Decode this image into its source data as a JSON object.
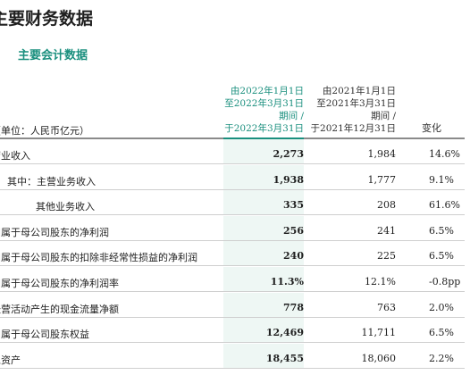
{
  "title": "主要财务数据",
  "subtitle": "主要会计数据",
  "header": {
    "current": [
      "由2022年1月1日",
      "至2022年3月31日",
      "期间 /",
      "于2022年3月31日"
    ],
    "previous": [
      "由2021年1月1日",
      "至2021年3月31日",
      "期间 /",
      "于2021年12月31日"
    ],
    "change": "变化",
    "unit": "（单位：人民币亿元）"
  },
  "accent_color": "#1a8f7e",
  "rows": [
    {
      "label": "营业收入",
      "current": "2,273",
      "previous": "1,984",
      "change": "14.6%"
    },
    {
      "label": "其中：主营业务收入",
      "current": "1,938",
      "previous": "1,777",
      "change": "9.1%"
    },
    {
      "label": "其他业务收入",
      "current": "335",
      "previous": "208",
      "change": "61.6%"
    },
    {
      "label": "归属于母公司股东的净利润",
      "current": "256",
      "previous": "241",
      "change": "6.5%"
    },
    {
      "label": "归属于母公司股东的扣除非经常性损益的净利润",
      "current": "240",
      "previous": "225",
      "change": "6.5%"
    },
    {
      "label": "归属于母公司股东的净利润率",
      "current": "11.3%",
      "previous": "12.1%",
      "change": "-0.8pp"
    },
    {
      "label": "经营活动产生的现金流量净额",
      "current": "778",
      "previous": "763",
      "change": "2.0%"
    },
    {
      "label": "归属于母公司股东权益",
      "current": "12,469",
      "previous": "11,711",
      "change": "6.5%"
    },
    {
      "label": "总资产",
      "current": "18,455",
      "previous": "18,060",
      "change": "2.2%"
    }
  ]
}
